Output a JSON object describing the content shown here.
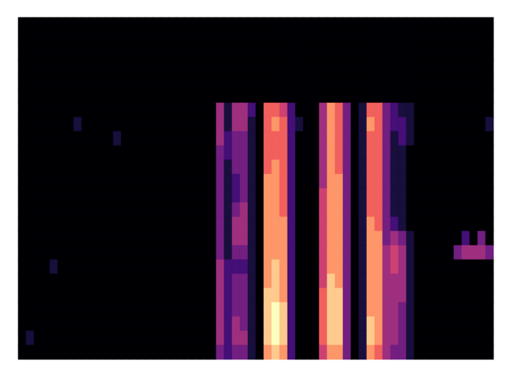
{
  "chart_data": {
    "type": "heatmap",
    "color": "magma",
    "tick_labels": false,
    "values": [
      [
        0,
        0,
        0,
        0,
        0,
        0,
        0,
        0,
        0,
        0,
        0,
        0,
        0,
        0,
        0,
        0,
        0,
        0,
        0,
        0,
        0,
        0,
        0,
        0,
        0,
        0,
        0,
        0,
        0,
        0,
        0,
        0,
        0,
        0,
        0,
        0,
        0,
        0,
        0,
        0,
        0,
        0,
        0,
        0,
        0,
        0,
        0,
        0,
        0,
        0,
        0,
        0,
        0,
        0,
        0,
        0,
        0,
        0,
        0,
        0
      ],
      [
        0,
        0,
        0,
        0,
        0,
        0,
        0,
        0,
        0,
        0,
        0,
        0,
        0,
        0,
        0,
        0,
        0,
        0,
        0,
        0,
        0,
        0,
        0,
        0,
        0,
        0,
        0,
        0,
        0,
        0,
        0,
        0,
        0,
        0,
        0,
        0,
        0,
        0,
        0,
        0,
        0,
        0,
        0,
        0,
        0,
        0,
        0,
        0,
        0,
        0,
        0,
        0,
        0,
        0,
        0,
        0,
        0,
        0,
        0,
        0
      ],
      [
        0,
        0,
        0,
        0,
        0,
        0,
        0,
        0,
        0,
        0,
        0,
        0,
        0,
        0,
        0,
        0,
        0,
        0,
        0,
        0,
        0,
        0,
        0,
        0,
        0,
        0,
        0,
        0,
        0,
        0,
        0,
        0,
        0,
        0,
        0,
        0,
        0,
        0,
        0,
        0,
        0,
        0,
        0,
        0,
        0,
        0,
        0,
        0,
        0,
        0,
        0,
        0,
        0,
        0,
        0,
        0,
        0,
        0,
        0,
        0
      ],
      [
        0,
        0,
        0,
        0,
        0,
        0,
        0,
        0,
        0,
        0,
        0,
        0,
        0,
        0,
        0,
        0,
        0,
        0,
        0,
        0,
        0,
        0,
        0,
        0,
        0,
        0,
        0,
        0,
        0,
        0,
        0,
        0,
        0,
        0,
        0,
        0,
        0,
        0,
        0,
        0,
        0,
        0,
        0,
        0,
        0,
        0,
        0,
        0,
        0,
        0,
        0,
        0,
        0,
        0,
        0,
        0,
        0,
        0,
        0,
        0
      ],
      [
        0,
        0,
        0,
        0,
        0,
        0,
        0,
        0,
        0,
        0,
        0,
        0,
        0,
        0,
        0,
        0,
        0,
        0,
        0,
        0,
        0,
        0,
        0,
        0,
        0,
        0,
        0,
        0,
        0,
        0,
        0,
        0,
        0,
        0,
        0,
        0,
        0,
        0,
        0,
        0,
        0,
        0,
        0,
        0,
        0,
        0,
        0,
        0,
        0,
        0,
        0,
        0,
        0,
        0,
        0,
        0,
        0,
        0,
        0,
        0
      ],
      [
        0,
        0,
        0,
        0,
        0,
        0,
        0,
        0,
        0,
        0,
        0,
        0,
        0,
        0,
        0,
        0,
        0,
        0,
        0,
        0,
        0,
        0,
        0,
        0,
        0,
        0,
        0,
        0,
        0,
        0,
        0,
        0,
        0,
        0,
        0,
        0,
        0,
        0,
        0,
        0,
        0,
        0,
        0,
        0,
        0,
        0,
        0,
        0,
        0,
        0,
        0,
        0,
        0,
        0,
        0,
        0,
        0,
        0,
        0,
        0
      ],
      [
        0,
        0,
        0,
        0,
        0,
        0,
        0,
        0,
        0,
        0,
        0,
        0,
        0,
        0,
        0,
        0,
        0,
        0,
        0,
        0,
        0,
        0,
        0,
        0,
        0,
        4,
        1,
        4,
        4,
        2,
        0,
        6,
        6,
        5,
        2,
        0,
        0,
        0,
        4,
        7,
        6,
        3,
        0,
        1,
        6,
        6,
        3,
        2,
        1,
        1,
        0,
        0,
        0,
        0,
        0,
        0,
        0,
        0,
        0,
        0
      ],
      [
        0,
        0,
        0,
        0,
        0,
        0,
        0,
        1,
        0,
        0,
        0,
        0,
        0,
        0,
        0,
        0,
        0,
        0,
        0,
        0,
        0,
        0,
        0,
        0,
        0,
        4,
        1,
        4,
        4,
        1,
        0,
        6,
        7,
        6,
        2,
        1,
        0,
        0,
        4,
        7,
        6,
        3,
        0,
        1,
        7,
        6,
        3,
        2,
        2,
        1,
        0,
        0,
        0,
        0,
        0,
        0,
        0,
        0,
        0,
        1
      ],
      [
        0,
        0,
        0,
        0,
        0,
        0,
        0,
        0,
        0,
        0,
        0,
        0,
        1,
        0,
        0,
        0,
        0,
        0,
        0,
        0,
        0,
        0,
        0,
        0,
        0,
        4,
        2,
        3,
        3,
        1,
        0,
        6,
        6,
        6,
        2,
        0,
        0,
        0,
        4,
        7,
        6,
        3,
        0,
        1,
        6,
        6,
        3,
        1,
        2,
        1,
        0,
        0,
        0,
        0,
        0,
        0,
        0,
        0,
        0,
        0
      ],
      [
        0,
        0,
        0,
        0,
        0,
        0,
        0,
        0,
        0,
        0,
        0,
        0,
        0,
        0,
        0,
        0,
        0,
        0,
        0,
        0,
        0,
        0,
        0,
        0,
        0,
        3,
        2,
        3,
        3,
        1,
        0,
        6,
        6,
        6,
        2,
        0,
        0,
        0,
        4,
        7,
        6,
        3,
        0,
        1,
        6,
        6,
        3,
        1,
        1,
        0,
        0,
        0,
        0,
        0,
        0,
        0,
        0,
        0,
        0,
        0
      ],
      [
        0,
        0,
        0,
        0,
        0,
        0,
        0,
        0,
        0,
        0,
        0,
        0,
        0,
        0,
        0,
        0,
        0,
        0,
        0,
        0,
        0,
        0,
        0,
        0,
        0,
        3,
        1,
        3,
        3,
        1,
        0,
        6,
        7,
        6,
        2,
        0,
        0,
        0,
        4,
        7,
        6,
        3,
        0,
        1,
        6,
        6,
        3,
        1,
        1,
        0,
        0,
        0,
        0,
        0,
        0,
        0,
        0,
        0,
        0,
        0
      ],
      [
        0,
        0,
        0,
        0,
        0,
        0,
        0,
        0,
        0,
        0,
        0,
        0,
        0,
        0,
        0,
        0,
        0,
        0,
        0,
        0,
        0,
        0,
        0,
        0,
        0,
        3,
        1,
        2,
        3,
        1,
        0,
        7,
        7,
        6,
        2,
        0,
        0,
        0,
        4,
        7,
        7,
        3,
        0,
        1,
        6,
        6,
        3,
        1,
        1,
        0,
        0,
        0,
        0,
        0,
        0,
        0,
        0,
        0,
        0,
        0
      ],
      [
        0,
        0,
        0,
        0,
        0,
        0,
        0,
        0,
        0,
        0,
        0,
        0,
        0,
        0,
        0,
        0,
        0,
        0,
        0,
        0,
        0,
        0,
        0,
        0,
        0,
        3,
        1,
        2,
        3,
        1,
        0,
        7,
        7,
        6,
        2,
        0,
        0,
        0,
        5,
        7,
        7,
        3,
        0,
        1,
        6,
        6,
        3,
        1,
        1,
        0,
        0,
        0,
        0,
        0,
        0,
        0,
        0,
        0,
        0,
        0
      ],
      [
        0,
        0,
        0,
        0,
        0,
        0,
        0,
        0,
        0,
        0,
        0,
        0,
        0,
        0,
        0,
        0,
        0,
        0,
        0,
        0,
        0,
        0,
        0,
        0,
        0,
        3,
        1,
        3,
        4,
        1,
        0,
        7,
        7,
        6,
        2,
        0,
        0,
        0,
        5,
        7,
        7,
        3,
        0,
        1,
        6,
        6,
        3,
        1,
        1,
        0,
        0,
        0,
        0,
        0,
        0,
        0,
        0,
        0,
        0,
        0
      ],
      [
        0,
        0,
        0,
        0,
        0,
        0,
        0,
        0,
        0,
        0,
        0,
        0,
        0,
        0,
        0,
        0,
        0,
        0,
        0,
        0,
        0,
        0,
        0,
        0,
        0,
        3,
        1,
        4,
        4,
        1,
        0,
        7,
        7,
        7,
        2,
        0,
        0,
        0,
        5,
        7,
        7,
        3,
        0,
        1,
        7,
        6,
        3,
        2,
        1,
        0,
        0,
        0,
        0,
        0,
        0,
        0,
        0,
        0,
        0,
        0
      ],
      [
        0,
        0,
        0,
        0,
        0,
        0,
        0,
        0,
        0,
        0,
        0,
        0,
        0,
        0,
        0,
        0,
        0,
        0,
        0,
        0,
        0,
        0,
        0,
        0,
        0,
        3,
        1,
        4,
        4,
        1,
        0,
        7,
        7,
        7,
        2,
        0,
        0,
        0,
        5,
        7,
        7,
        3,
        0,
        1,
        7,
        7,
        3,
        4,
        3,
        1,
        0,
        0,
        0,
        0,
        0,
        0,
        2,
        0,
        3,
        0
      ],
      [
        0,
        0,
        0,
        0,
        0,
        0,
        0,
        0,
        0,
        0,
        0,
        0,
        0,
        0,
        0,
        0,
        0,
        0,
        0,
        0,
        0,
        0,
        0,
        0,
        0,
        3,
        1,
        3,
        3,
        1,
        0,
        7,
        7,
        7,
        2,
        0,
        0,
        0,
        5,
        7,
        7,
        3,
        0,
        1,
        7,
        7,
        4,
        5,
        4,
        1,
        0,
        0,
        0,
        0,
        0,
        3,
        4,
        4,
        4,
        3
      ],
      [
        0,
        0,
        0,
        0,
        1,
        0,
        0,
        0,
        0,
        0,
        0,
        0,
        0,
        0,
        0,
        0,
        0,
        0,
        0,
        0,
        0,
        0,
        0,
        0,
        0,
        4,
        2,
        2,
        2,
        1,
        0,
        7,
        8,
        7,
        2,
        0,
        0,
        0,
        5,
        7,
        7,
        3,
        0,
        1,
        7,
        7,
        4,
        5,
        4,
        1,
        0,
        0,
        0,
        0,
        0,
        0,
        0,
        0,
        0,
        0
      ],
      [
        0,
        0,
        0,
        0,
        0,
        0,
        0,
        0,
        0,
        0,
        0,
        0,
        0,
        0,
        0,
        0,
        0,
        0,
        0,
        0,
        0,
        0,
        0,
        0,
        0,
        4,
        2,
        3,
        3,
        1,
        0,
        7,
        8,
        7,
        2,
        0,
        0,
        0,
        5,
        8,
        7,
        3,
        0,
        1,
        7,
        7,
        4,
        4,
        4,
        1,
        0,
        0,
        0,
        0,
        0,
        0,
        0,
        0,
        0,
        0
      ],
      [
        0,
        0,
        0,
        0,
        0,
        0,
        0,
        0,
        0,
        0,
        0,
        0,
        0,
        0,
        0,
        0,
        0,
        0,
        0,
        0,
        0,
        0,
        0,
        0,
        0,
        4,
        2,
        3,
        3,
        1,
        0,
        8,
        8,
        7,
        2,
        0,
        0,
        0,
        6,
        8,
        8,
        3,
        0,
        1,
        7,
        7,
        4,
        4,
        4,
        1,
        0,
        0,
        0,
        0,
        0,
        0,
        0,
        0,
        0,
        0
      ],
      [
        0,
        0,
        0,
        0,
        0,
        0,
        0,
        0,
        0,
        0,
        0,
        0,
        0,
        0,
        0,
        0,
        0,
        0,
        0,
        0,
        0,
        0,
        0,
        0,
        0,
        4,
        2,
        3,
        3,
        1,
        0,
        8,
        9,
        8,
        2,
        0,
        0,
        0,
        6,
        8,
        8,
        3,
        0,
        1,
        7,
        7,
        4,
        4,
        3,
        1,
        0,
        0,
        0,
        0,
        0,
        0,
        0,
        0,
        0,
        0
      ],
      [
        0,
        0,
        0,
        0,
        0,
        0,
        0,
        0,
        0,
        0,
        0,
        0,
        0,
        0,
        0,
        0,
        0,
        0,
        0,
        0,
        0,
        0,
        0,
        0,
        0,
        4,
        2,
        4,
        3,
        1,
        0,
        8,
        9,
        8,
        2,
        0,
        0,
        0,
        6,
        8,
        8,
        3,
        0,
        1,
        8,
        7,
        4,
        4,
        3,
        1,
        0,
        0,
        0,
        0,
        0,
        0,
        0,
        0,
        0,
        0
      ],
      [
        0,
        1,
        0,
        0,
        0,
        0,
        0,
        0,
        0,
        0,
        0,
        0,
        0,
        0,
        0,
        0,
        0,
        0,
        0,
        0,
        0,
        0,
        0,
        0,
        0,
        4,
        2,
        4,
        4,
        1,
        0,
        8,
        9,
        8,
        2,
        0,
        0,
        0,
        6,
        8,
        8,
        3,
        0,
        1,
        8,
        7,
        4,
        4,
        3,
        1,
        0,
        0,
        0,
        0,
        0,
        0,
        0,
        0,
        0,
        0
      ],
      [
        0,
        0,
        0,
        0,
        0,
        0,
        0,
        0,
        0,
        0,
        0,
        0,
        0,
        0,
        0,
        0,
        0,
        0,
        0,
        0,
        0,
        0,
        0,
        0,
        0,
        3,
        2,
        3,
        3,
        1,
        0,
        7,
        8,
        7,
        2,
        0,
        0,
        0,
        5,
        7,
        7,
        3,
        0,
        1,
        7,
        6,
        4,
        3,
        3,
        1,
        0,
        0,
        0,
        0,
        0,
        0,
        0,
        0,
        0,
        0
      ]
    ]
  }
}
